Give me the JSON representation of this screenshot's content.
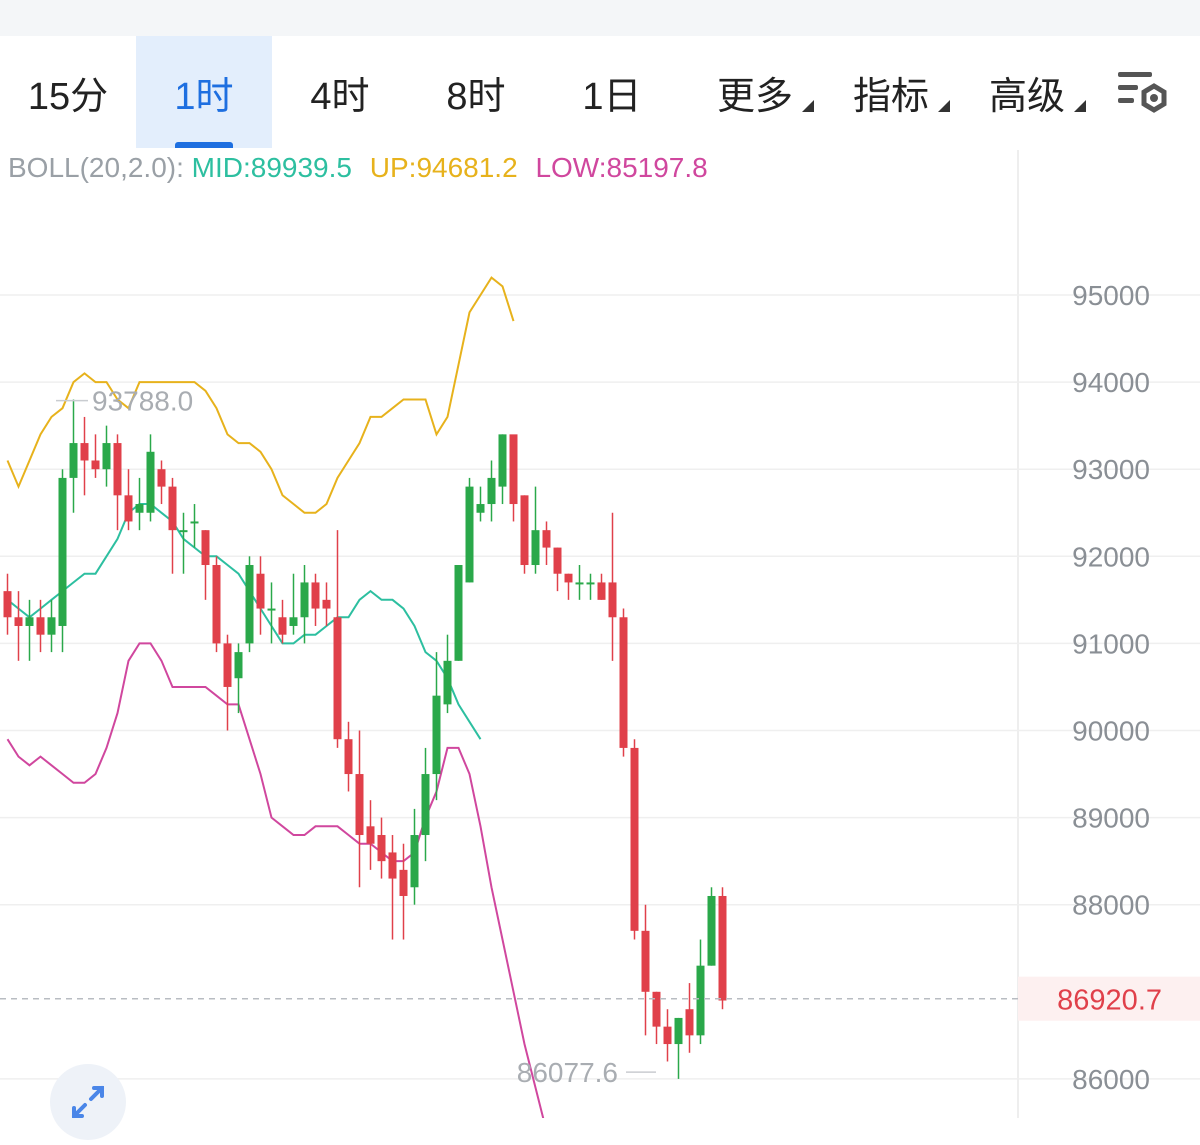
{
  "tabs": [
    {
      "label": "15分",
      "active": false,
      "dropdown": false
    },
    {
      "label": "1时",
      "active": true,
      "dropdown": false
    },
    {
      "label": "4时",
      "active": false,
      "dropdown": false
    },
    {
      "label": "8时",
      "active": false,
      "dropdown": false
    },
    {
      "label": "1日",
      "active": false,
      "dropdown": false
    },
    {
      "label": "更多",
      "active": false,
      "dropdown": true
    },
    {
      "label": "指标",
      "active": false,
      "dropdown": true
    },
    {
      "label": "高级",
      "active": false,
      "dropdown": true
    }
  ],
  "settings_icon": "chart-settings-icon",
  "indicator": {
    "label": "BOLL(20,2.0):",
    "mid": "MID:89939.5",
    "up": "UP:94681.2",
    "low": "LOW:85197.8"
  },
  "colors": {
    "up_candle": "#2aa84a",
    "down_candle": "#e0404a",
    "boll_mid": "#2dbfa0",
    "boll_up": "#e7b21c",
    "boll_low": "#d0479e",
    "accent": "#1e6fe0",
    "current_price": "#e0404a"
  },
  "chart_data": {
    "type": "candlestick",
    "y_ticks": [
      95000,
      94000,
      93000,
      92000,
      91000,
      90000,
      89000,
      88000,
      86000
    ],
    "ylim": [
      85600,
      96800
    ],
    "current_price": "86920.7",
    "high_marker": "93788.0",
    "low_marker": "86077.6",
    "candles": [
      [
        91600,
        91300,
        91800,
        91100
      ],
      [
        91300,
        91200,
        91600,
        90800
      ],
      [
        91200,
        91300,
        91500,
        90800
      ],
      [
        91300,
        91100,
        91500,
        90900
      ],
      [
        91100,
        91300,
        91500,
        90900
      ],
      [
        91200,
        92900,
        93000,
        90900
      ],
      [
        92900,
        93300,
        93800,
        92500
      ],
      [
        93300,
        93100,
        93600,
        92700
      ],
      [
        93100,
        93000,
        93400,
        92900
      ],
      [
        93000,
        93300,
        93500,
        92800
      ],
      [
        93300,
        92700,
        93400,
        92300
      ],
      [
        92700,
        92400,
        93000,
        92300
      ],
      [
        92500,
        92600,
        92900,
        92300
      ],
      [
        92500,
        93200,
        93400,
        92400
      ],
      [
        93000,
        92800,
        93100,
        92600
      ],
      [
        92800,
        92300,
        92900,
        91800
      ],
      [
        92300,
        92300,
        92500,
        91800
      ],
      [
        92400,
        92400,
        92600,
        92100
      ],
      [
        92300,
        91900,
        92300,
        91500
      ],
      [
        91900,
        91000,
        92000,
        90900
      ],
      [
        91000,
        90500,
        91100,
        90000
      ],
      [
        90600,
        90900,
        91000,
        90200
      ],
      [
        91000,
        91900,
        92000,
        90900
      ],
      [
        91800,
        91400,
        92000,
        91100
      ],
      [
        91400,
        91400,
        91700,
        91000
      ],
      [
        91300,
        91100,
        91500,
        91000
      ],
      [
        91200,
        91300,
        91800,
        91100
      ],
      [
        91300,
        91700,
        91900,
        91000
      ],
      [
        91700,
        91400,
        91800,
        91200
      ],
      [
        91500,
        91400,
        91700,
        91200
      ],
      [
        91300,
        89900,
        92300,
        89800
      ],
      [
        89900,
        89500,
        90100,
        89300
      ],
      [
        89500,
        88800,
        90000,
        88200
      ],
      [
        88900,
        88700,
        89200,
        88400
      ],
      [
        88800,
        88500,
        89000,
        88300
      ],
      [
        88600,
        88300,
        88800,
        87600
      ],
      [
        88400,
        88100,
        88700,
        87600
      ],
      [
        88200,
        88800,
        89100,
        88000
      ],
      [
        88800,
        89500,
        89800,
        88500
      ],
      [
        89500,
        90400,
        90900,
        89200
      ],
      [
        90300,
        90800,
        91100,
        90200
      ],
      [
        90800,
        91900,
        91900,
        90800
      ],
      [
        91700,
        92800,
        92900,
        91700
      ],
      [
        92500,
        92600,
        92800,
        92400
      ],
      [
        92600,
        92900,
        93100,
        92400
      ],
      [
        92800,
        93400,
        93400,
        92600
      ],
      [
        93400,
        92600,
        92700,
        92400
      ],
      [
        92700,
        91900,
        92700,
        91800
      ],
      [
        91900,
        92300,
        92800,
        91800
      ],
      [
        92300,
        92100,
        92400,
        91900
      ],
      [
        92100,
        91800,
        92100,
        91600
      ],
      [
        91800,
        91700,
        91800,
        91500
      ],
      [
        91700,
        91700,
        91900,
        91500
      ],
      [
        91700,
        91700,
        91800,
        91500
      ],
      [
        91700,
        91500,
        91800,
        91500
      ],
      [
        91700,
        91300,
        92500,
        90800
      ],
      [
        91300,
        89800,
        91400,
        89700
      ],
      [
        89800,
        87700,
        89900,
        87600
      ],
      [
        87700,
        87000,
        88000,
        86500
      ],
      [
        87000,
        86600,
        87000,
        86400
      ],
      [
        86600,
        86400,
        86800,
        86200
      ],
      [
        86400,
        86700,
        86700,
        86000
      ],
      [
        86800,
        86500,
        87100,
        86300
      ],
      [
        86500,
        87300,
        87600,
        86400
      ],
      [
        87300,
        88100,
        88200,
        87300
      ],
      [
        88100,
        86900,
        88200,
        86800
      ]
    ],
    "boll_up": [
      93100,
      92800,
      93100,
      93400,
      93600,
      93700,
      94000,
      94100,
      94000,
      94000,
      93800,
      93700,
      94000,
      94000,
      94000,
      94000,
      94000,
      94000,
      93900,
      93700,
      93400,
      93300,
      93300,
      93200,
      93000,
      92700,
      92600,
      92500,
      92500,
      92600,
      92900,
      93100,
      93300,
      93600,
      93600,
      93700,
      93800,
      93800,
      93800,
      93400,
      93600,
      94200,
      94800,
      95000,
      95200,
      95100,
      94700
    ],
    "boll_mid": [
      91500,
      91400,
      91300,
      91400,
      91500,
      91600,
      91700,
      91800,
      91800,
      92000,
      92200,
      92500,
      92600,
      92600,
      92500,
      92400,
      92200,
      92100,
      92000,
      92000,
      91900,
      91800,
      91600,
      91400,
      91200,
      91000,
      91000,
      91100,
      91100,
      91200,
      91300,
      91300,
      91500,
      91600,
      91500,
      91500,
      91400,
      91200,
      90900,
      90800,
      90600,
      90300,
      90100,
      89900
    ],
    "boll_low": [
      89900,
      89700,
      89600,
      89700,
      89600,
      89500,
      89400,
      89400,
      89500,
      89800,
      90200,
      90800,
      91000,
      91000,
      90800,
      90500,
      90500,
      90500,
      90500,
      90400,
      90300,
      90300,
      89900,
      89500,
      89000,
      88900,
      88800,
      88800,
      88900,
      88900,
      88900,
      88800,
      88700,
      88700,
      88600,
      88500,
      88500,
      88600,
      89000,
      89300,
      89800,
      89800,
      89500,
      88900,
      88200,
      87600,
      87000,
      86400,
      85900,
      85400
    ]
  }
}
